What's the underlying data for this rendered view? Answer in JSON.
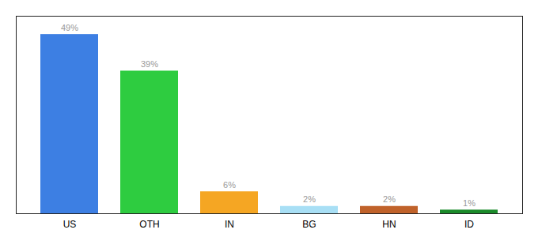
{
  "chart_data": {
    "type": "bar",
    "categories": [
      "US",
      "OTH",
      "IN",
      "BG",
      "HN",
      "ID"
    ],
    "values": [
      49,
      39,
      6,
      2,
      2,
      1
    ],
    "value_labels": [
      "49%",
      "39%",
      "6%",
      "2%",
      "2%",
      "1%"
    ],
    "colors": [
      "#3d7fe3",
      "#2ecc40",
      "#f5a623",
      "#a8dff5",
      "#c0622a",
      "#1a8a2a"
    ],
    "ylim": [
      0,
      54
    ],
    "data_labels": true,
    "tick_labels": "x",
    "grid": false
  }
}
